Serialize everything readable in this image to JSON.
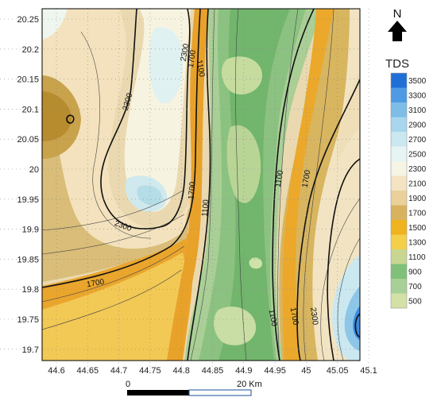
{
  "map": {
    "x_ticks": [
      "44.6",
      "44.65",
      "44.7",
      "44.75",
      "44.8",
      "44.85",
      "44.9",
      "44.95",
      "45",
      "45.05",
      "45.1"
    ],
    "y_ticks": [
      "20.25",
      "20.2",
      "20.15",
      "20.1",
      "20.05",
      "20",
      "19.95",
      "19.9",
      "19.85",
      "19.8",
      "19.75",
      "19.7"
    ],
    "contour_labels": [
      "2300",
      "1100",
      "2300",
      "1700",
      "2300",
      "1700",
      "1100",
      "1100",
      "1700",
      "1700",
      "1100",
      "1700",
      "2300"
    ]
  },
  "legend": {
    "title": "TDS",
    "levels": [
      "3500",
      "3300",
      "3100",
      "2900",
      "2700",
      "2500",
      "2300",
      "2100",
      "1900",
      "1700",
      "1500",
      "1300",
      "1100",
      "900",
      "700",
      "500"
    ],
    "colors": [
      "#1f6fd6",
      "#4f9be3",
      "#7dbde8",
      "#a7d6ee",
      "#cbe8f1",
      "#e6f4f3",
      "#f6f4e4",
      "#f4e3c2",
      "#ead09b",
      "#d8b25e",
      "#f0b320",
      "#f4d04a",
      "#c8d692",
      "#7fc178",
      "#a8cf97",
      "#d3e1a6"
    ]
  },
  "north_arrow": {
    "label": "N"
  },
  "scale_bar": {
    "start_label": "0",
    "end_label": "20 Km"
  },
  "colors": {
    "frame": "#000000",
    "grid": "#888888"
  }
}
